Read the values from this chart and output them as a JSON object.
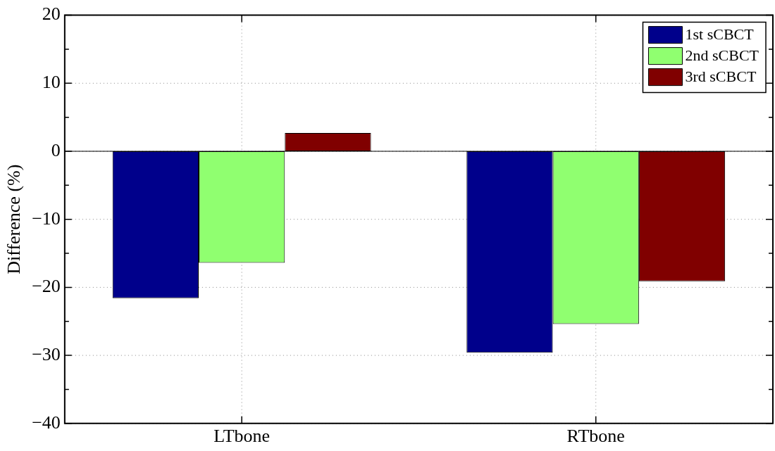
{
  "chart_data": {
    "type": "bar",
    "ylabel": "Difference (%)",
    "categories": [
      "LTbone",
      "RTbone"
    ],
    "series": [
      {
        "name": "1st sCBCT",
        "color": "#00008b",
        "values": [
          -21.6,
          -29.6
        ]
      },
      {
        "name": "2nd sCBCT",
        "color": "#90ff70",
        "values": [
          -16.4,
          -25.4
        ]
      },
      {
        "name": "3rd sCBCT",
        "color": "#800000",
        "values": [
          2.7,
          -19.1
        ]
      }
    ],
    "ylim": [
      -40,
      20
    ],
    "yticks": [
      -40,
      {
        "value": -35,
        "label": null
      },
      {
        "value": -30,
        "label": "−30"
      },
      {
        "value": -25,
        "label": null
      },
      {
        "value": -20,
        "label": "−20"
      },
      {
        "value": -15,
        "label": null
      },
      {
        "value": -10,
        "label": "−10"
      },
      {
        "value": -5,
        "label": null
      },
      0,
      {
        "value": 5,
        "label": null
      },
      10,
      {
        "value": 15,
        "label": null
      },
      20
    ],
    "grid": true,
    "legend": "top right"
  }
}
